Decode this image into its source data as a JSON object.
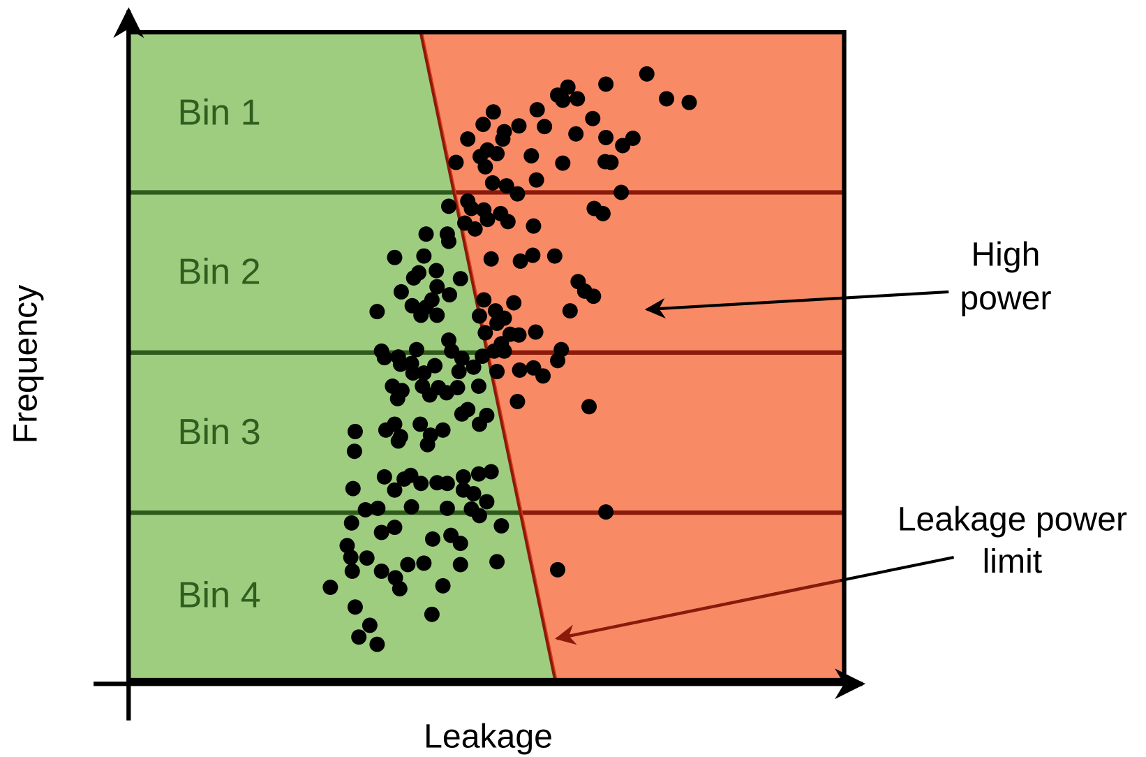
{
  "diagram": {
    "bins": [
      "Bin 1",
      "Bin 2",
      "Bin 3",
      "Bin 4"
    ],
    "y_axis_label": "Frequency",
    "x_axis_label": "Leakage",
    "annotations": [
      {
        "lines": [
          "High",
          "power"
        ]
      },
      {
        "lines": [
          "Leakage power",
          "limit"
        ]
      }
    ]
  }
}
